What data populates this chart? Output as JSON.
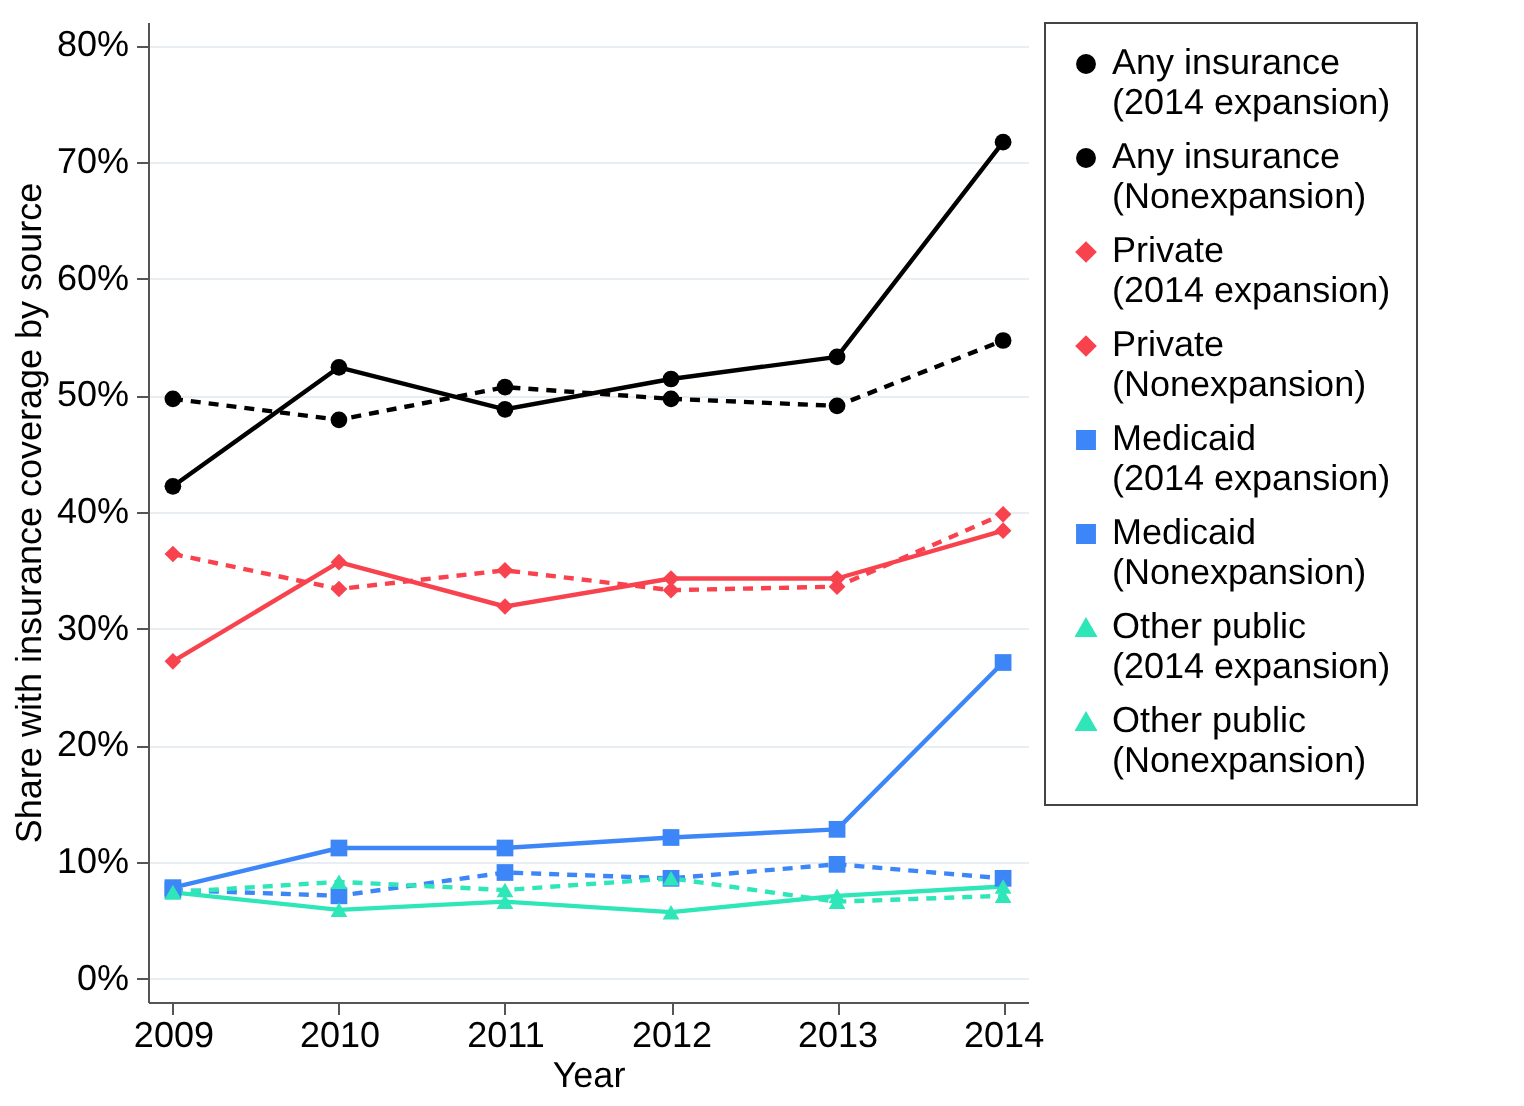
{
  "chart_data": {
    "type": "line",
    "xlabel": "Year",
    "ylabel": "Share with insurance coverage by source",
    "x": [
      2009,
      2010,
      2011,
      2012,
      2013,
      2014
    ],
    "xlim": [
      2008.85,
      2014.15
    ],
    "xticks": [
      2009,
      2010,
      2011,
      2012,
      2013,
      2014
    ],
    "ylim": [
      -2,
      82
    ],
    "yticks": [
      {
        "value": 0,
        "label": "0%"
      },
      {
        "value": 10,
        "label": "10%"
      },
      {
        "value": 20,
        "label": "20%"
      },
      {
        "value": 30,
        "label": "30%"
      },
      {
        "value": 40,
        "label": "40%"
      },
      {
        "value": 50,
        "label": "50%"
      },
      {
        "value": 60,
        "label": "60%"
      },
      {
        "value": 70,
        "label": "70%"
      },
      {
        "value": 80,
        "label": "80%"
      }
    ],
    "grid": "y",
    "legend": "right",
    "series": [
      {
        "name": "Any insurance\n(2014 expansion)",
        "color": "#000000",
        "marker": "circle",
        "line_style": "solid",
        "values": [
          42.2,
          52.4,
          48.8,
          51.4,
          53.3,
          71.7
        ]
      },
      {
        "name": "Any insurance\n(Nonexpansion)",
        "color": "#000000",
        "marker": "circle",
        "line_style": "dashed",
        "values": [
          49.7,
          47.9,
          50.7,
          49.7,
          49.1,
          54.7
        ]
      },
      {
        "name": "Private\n(2014 expansion)",
        "color": "#f8434f",
        "marker": "diamond",
        "line_style": "solid",
        "values": [
          27.2,
          35.7,
          31.9,
          34.3,
          34.3,
          38.4
        ]
      },
      {
        "name": "Private\n(Nonexpansion)",
        "color": "#f8434f",
        "marker": "diamond",
        "line_style": "dashed",
        "values": [
          36.4,
          33.4,
          35.0,
          33.3,
          33.6,
          39.8
        ]
      },
      {
        "name": "Medicaid\n(2014 expansion)",
        "color": "#3d86f8",
        "marker": "square",
        "line_style": "solid",
        "values": [
          7.8,
          11.2,
          11.2,
          12.1,
          12.8,
          27.1
        ]
      },
      {
        "name": "Medicaid\n(Nonexpansion)",
        "color": "#3d86f8",
        "marker": "square",
        "line_style": "dashed",
        "values": [
          7.6,
          7.1,
          9.1,
          8.6,
          9.8,
          8.6
        ]
      },
      {
        "name": "Other public\n(2014 expansion)",
        "color": "#2ee6b8",
        "marker": "triangle",
        "line_style": "solid",
        "values": [
          7.4,
          5.9,
          6.6,
          5.7,
          7.1,
          7.9
        ]
      },
      {
        "name": "Other public\n(Nonexpansion)",
        "color": "#2ee6b8",
        "marker": "triangle",
        "line_style": "dashed",
        "values": [
          7.4,
          8.3,
          7.6,
          8.6,
          6.6,
          7.1
        ]
      }
    ]
  }
}
